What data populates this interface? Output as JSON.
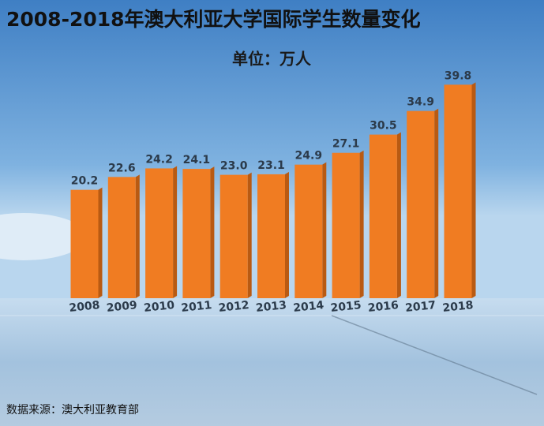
{
  "chart_data": {
    "type": "bar",
    "title": "2008-2018年澳大利亚大学国际学生数量变化",
    "subtitle": "单位：万人",
    "source": "数据来源：澳大利亚教育部",
    "categories": [
      "2008",
      "2009",
      "2010",
      "2011",
      "2012",
      "2013",
      "2014",
      "2015",
      "2016",
      "2017",
      "2018"
    ],
    "values": [
      20.2,
      22.6,
      24.2,
      24.1,
      23.0,
      23.1,
      24.9,
      27.1,
      30.5,
      34.9,
      39.8
    ],
    "value_labels": [
      "20.2",
      "22.6",
      "24.2",
      "24.1",
      "23.0",
      "23.1",
      "24.9",
      "27.1",
      "30.5",
      "34.9",
      "39.8"
    ],
    "color": "#f07c22"
  }
}
